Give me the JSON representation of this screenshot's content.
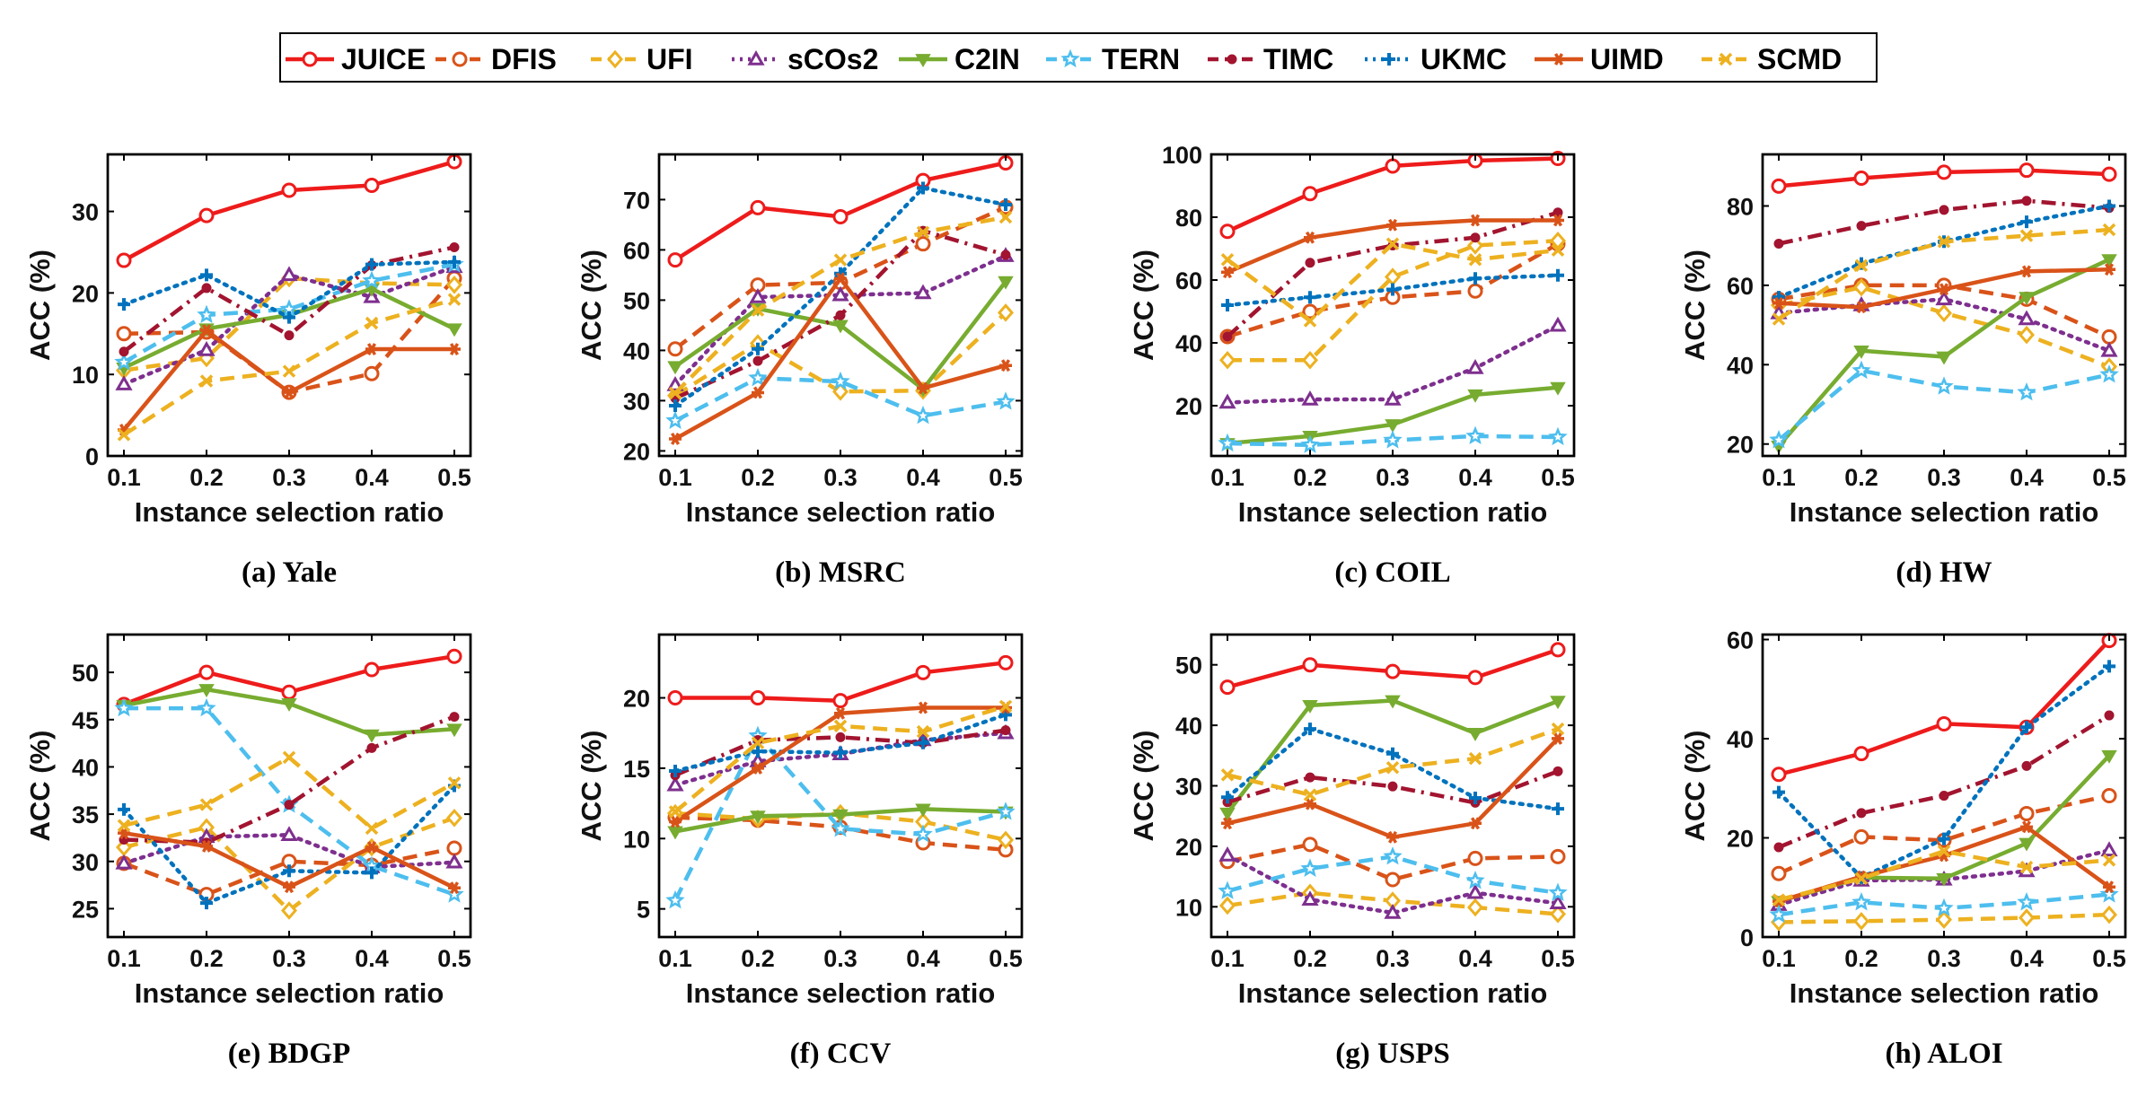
{
  "legend": [
    {
      "name": "JUICE",
      "color": "#EE1B1B",
      "dash": "solid",
      "marker": "circle-open"
    },
    {
      "name": "DFIS",
      "color": "#D95319",
      "dash": "dashed",
      "marker": "circle-open"
    },
    {
      "name": "UFI",
      "color": "#EDB120",
      "dash": "dashed",
      "marker": "diamond-open"
    },
    {
      "name": "sCOs2",
      "color": "#7E2F8E",
      "dash": "dotted",
      "marker": "triangle-open"
    },
    {
      "name": "C2IN",
      "color": "#77AC30",
      "dash": "solid",
      "marker": "triangle-down-filled"
    },
    {
      "name": "TERN",
      "color": "#4DBEEE",
      "dash": "dashed",
      "marker": "pentagram"
    },
    {
      "name": "TIMC",
      "color": "#A2142F",
      "dash": "dashdot",
      "marker": "dot"
    },
    {
      "name": "UKMC",
      "color": "#0072BD",
      "dash": "dotted",
      "marker": "plus"
    },
    {
      "name": "UIMD",
      "color": "#D95319",
      "dash": "solid",
      "marker": "star"
    },
    {
      "name": "SCMD",
      "color": "#EDB120",
      "dash": "dashed",
      "marker": "x"
    }
  ],
  "chart_data": [
    {
      "type": "line",
      "caption": "(a) Yale",
      "xlabel": "Instance selection ratio",
      "ylabel": "ACC (%)",
      "x": [
        0.1,
        0.2,
        0.3,
        0.4,
        0.5
      ],
      "xticks": [
        "0.1",
        "0.2",
        "0.3",
        "0.4",
        "0.5"
      ],
      "ylim": [
        0,
        37
      ],
      "yticks": [
        0,
        10,
        20,
        30
      ],
      "series": [
        {
          "name": "JUICE",
          "values": [
            24.0,
            29.5,
            32.6,
            33.2,
            36.1
          ]
        },
        {
          "name": "DFIS",
          "values": [
            15.0,
            15.2,
            7.8,
            10.1,
            21.8
          ]
        },
        {
          "name": "UFI",
          "values": [
            10.5,
            12.0,
            21.8,
            21.2,
            21.0
          ]
        },
        {
          "name": "sCOs2",
          "values": [
            8.8,
            13.0,
            22.2,
            19.5,
            23.2
          ]
        },
        {
          "name": "C2IN",
          "values": [
            10.8,
            15.6,
            17.3,
            20.5,
            15.6
          ]
        },
        {
          "name": "TERN",
          "values": [
            11.5,
            17.3,
            18.0,
            21.5,
            23.5
          ]
        },
        {
          "name": "TIMC",
          "values": [
            12.8,
            20.6,
            14.8,
            23.4,
            25.6
          ]
        },
        {
          "name": "UKMC",
          "values": [
            18.6,
            22.2,
            17.0,
            23.5,
            23.8
          ]
        },
        {
          "name": "UIMD",
          "values": [
            3.2,
            15.4,
            7.8,
            13.1,
            13.1
          ]
        },
        {
          "name": "SCMD",
          "values": [
            2.6,
            9.2,
            10.4,
            16.3,
            19.2
          ]
        }
      ]
    },
    {
      "type": "line",
      "caption": "(b) MSRC",
      "xlabel": "Instance selection ratio",
      "ylabel": "ACC (%)",
      "x": [
        0.1,
        0.2,
        0.3,
        0.4,
        0.5
      ],
      "xticks": [
        "0.1",
        "0.2",
        "0.3",
        "0.4",
        "0.5"
      ],
      "ylim": [
        19,
        79
      ],
      "yticks": [
        20,
        30,
        40,
        50,
        60,
        70
      ],
      "series": [
        {
          "name": "JUICE",
          "values": [
            58.0,
            68.4,
            66.6,
            73.8,
            77.3
          ]
        },
        {
          "name": "DFIS",
          "values": [
            40.3,
            53.0,
            53.5,
            61.2,
            68.5
          ]
        },
        {
          "name": "UFI",
          "values": [
            31.0,
            41.4,
            31.8,
            32.0,
            47.5
          ]
        },
        {
          "name": "sCOs2",
          "values": [
            33.1,
            50.6,
            51.0,
            51.4,
            58.8
          ]
        },
        {
          "name": "C2IN",
          "values": [
            36.8,
            48.3,
            45.0,
            32.3,
            53.7
          ]
        },
        {
          "name": "TERN",
          "values": [
            26.0,
            34.5,
            33.8,
            27.0,
            29.8
          ]
        },
        {
          "name": "TIMC",
          "values": [
            30.5,
            37.9,
            47.0,
            63.8,
            59.0
          ]
        },
        {
          "name": "UKMC",
          "values": [
            29.0,
            40.3,
            55.3,
            72.3,
            69.0
          ]
        },
        {
          "name": "UIMD",
          "values": [
            22.4,
            31.6,
            54.3,
            32.5,
            37.0
          ]
        },
        {
          "name": "SCMD",
          "values": [
            31.5,
            48.0,
            58.0,
            63.5,
            66.5
          ]
        }
      ]
    },
    {
      "type": "line",
      "caption": "(c) COIL",
      "xlabel": "Instance selection ratio",
      "ylabel": "ACC (%)",
      "x": [
        0.1,
        0.2,
        0.3,
        0.4,
        0.5
      ],
      "xticks": [
        "0.1",
        "0.2",
        "0.3",
        "0.4",
        "0.5"
      ],
      "ylim": [
        4,
        100
      ],
      "yticks": [
        20,
        40,
        60,
        80,
        100
      ],
      "series": [
        {
          "name": "JUICE",
          "values": [
            75.5,
            87.5,
            96.3,
            98.0,
            98.7
          ]
        },
        {
          "name": "DFIS",
          "values": [
            42.0,
            50.0,
            54.5,
            56.5,
            71.5
          ]
        },
        {
          "name": "UFI",
          "values": [
            34.5,
            34.5,
            61.0,
            71.0,
            72.5
          ]
        },
        {
          "name": "sCOs2",
          "values": [
            21.0,
            22.0,
            22.0,
            32.0,
            45.5
          ]
        },
        {
          "name": "C2IN",
          "values": [
            8.0,
            10.3,
            14.0,
            23.5,
            25.8
          ]
        },
        {
          "name": "TERN",
          "values": [
            8.0,
            7.5,
            9.0,
            10.3,
            10.0
          ]
        },
        {
          "name": "TIMC",
          "values": [
            42.0,
            65.5,
            71.0,
            73.5,
            81.5
          ]
        },
        {
          "name": "UKMC",
          "values": [
            52.0,
            54.5,
            57.0,
            60.5,
            61.5
          ]
        },
        {
          "name": "UIMD",
          "values": [
            62.5,
            73.5,
            77.5,
            79.0,
            79.0
          ]
        },
        {
          "name": "SCMD",
          "values": [
            66.5,
            47.0,
            71.5,
            66.5,
            69.5
          ]
        }
      ]
    },
    {
      "type": "line",
      "caption": "(d) HW",
      "xlabel": "Instance selection ratio",
      "ylabel": "ACC (%)",
      "x": [
        0.1,
        0.2,
        0.3,
        0.4,
        0.5
      ],
      "xticks": [
        "0.1",
        "0.2",
        "0.3",
        "0.4",
        "0.5"
      ],
      "ylim": [
        17,
        93
      ],
      "yticks": [
        20,
        40,
        60,
        80
      ],
      "series": [
        {
          "name": "JUICE",
          "values": [
            85.0,
            87.0,
            88.5,
            89.0,
            88.0
          ]
        },
        {
          "name": "DFIS",
          "values": [
            56.5,
            60.0,
            60.0,
            56.5,
            47.0
          ]
        },
        {
          "name": "UFI",
          "values": [
            55.0,
            59.5,
            53.0,
            47.5,
            39.5
          ]
        },
        {
          "name": "sCOs2",
          "values": [
            53.0,
            55.0,
            56.5,
            51.5,
            43.5
          ]
        },
        {
          "name": "C2IN",
          "values": [
            19.5,
            43.5,
            42.0,
            57.0,
            66.5
          ]
        },
        {
          "name": "TERN",
          "values": [
            21.0,
            38.5,
            34.5,
            33.0,
            37.5
          ]
        },
        {
          "name": "TIMC",
          "values": [
            70.5,
            75.0,
            79.0,
            81.3,
            79.5
          ]
        },
        {
          "name": "UKMC",
          "values": [
            57.0,
            65.5,
            71.0,
            76.0,
            80.0
          ]
        },
        {
          "name": "UIMD",
          "values": [
            55.5,
            54.5,
            59.0,
            63.5,
            64.0
          ]
        },
        {
          "name": "SCMD",
          "values": [
            51.5,
            65.0,
            71.0,
            72.5,
            74.0
          ]
        }
      ]
    },
    {
      "type": "line",
      "caption": "(e) BDGP",
      "xlabel": "Instance selection ratio",
      "ylabel": "ACC (%)",
      "x": [
        0.1,
        0.2,
        0.3,
        0.4,
        0.5
      ],
      "xticks": [
        "0.1",
        "0.2",
        "0.3",
        "0.4",
        "0.5"
      ],
      "ylim": [
        22,
        54
      ],
      "yticks": [
        25,
        30,
        35,
        40,
        45,
        50
      ],
      "series": [
        {
          "name": "JUICE",
          "values": [
            46.6,
            50.0,
            47.9,
            50.3,
            51.7
          ]
        },
        {
          "name": "DFIS",
          "values": [
            29.8,
            26.5,
            30.0,
            29.6,
            31.4
          ]
        },
        {
          "name": "UFI",
          "values": [
            31.5,
            33.6,
            24.8,
            31.5,
            34.6
          ]
        },
        {
          "name": "sCOs2",
          "values": [
            29.8,
            32.6,
            32.8,
            29.4,
            29.9
          ]
        },
        {
          "name": "C2IN",
          "values": [
            46.5,
            48.2,
            46.7,
            43.4,
            44.0
          ]
        },
        {
          "name": "TERN",
          "values": [
            46.2,
            46.2,
            36.0,
            29.5,
            26.5
          ]
        },
        {
          "name": "TIMC",
          "values": [
            32.3,
            32.0,
            36.0,
            42.0,
            45.3
          ]
        },
        {
          "name": "UKMC",
          "values": [
            35.5,
            25.6,
            29.0,
            28.8,
            38.0
          ]
        },
        {
          "name": "UIMD",
          "values": [
            33.0,
            31.6,
            27.3,
            31.5,
            27.2
          ]
        },
        {
          "name": "SCMD",
          "values": [
            33.8,
            36.0,
            41.0,
            33.5,
            38.3
          ]
        }
      ]
    },
    {
      "type": "line",
      "caption": "(f) CCV",
      "xlabel": "Instance selection ratio",
      "ylabel": "ACC (%)",
      "x": [
        0.1,
        0.2,
        0.3,
        0.4,
        0.5
      ],
      "xticks": [
        "0.1",
        "0.2",
        "0.3",
        "0.4",
        "0.5"
      ],
      "ylim": [
        3,
        24.5
      ],
      "yticks": [
        5,
        10,
        15,
        20
      ],
      "series": [
        {
          "name": "JUICE",
          "values": [
            20.0,
            20.0,
            19.8,
            21.8,
            22.5
          ]
        },
        {
          "name": "DFIS",
          "values": [
            11.5,
            11.3,
            10.8,
            9.7,
            9.2
          ]
        },
        {
          "name": "UFI",
          "values": [
            11.8,
            11.4,
            11.8,
            11.2,
            9.9
          ]
        },
        {
          "name": "sCOs2",
          "values": [
            13.8,
            15.5,
            16.0,
            17.0,
            17.5
          ]
        },
        {
          "name": "C2IN",
          "values": [
            10.5,
            11.6,
            11.7,
            12.1,
            11.9
          ]
        },
        {
          "name": "TERN",
          "values": [
            5.6,
            17.3,
            10.7,
            10.3,
            11.9
          ]
        },
        {
          "name": "TIMC",
          "values": [
            14.5,
            17.0,
            17.2,
            16.8,
            17.7
          ]
        },
        {
          "name": "UKMC",
          "values": [
            14.8,
            16.2,
            16.1,
            16.8,
            18.8
          ]
        },
        {
          "name": "UIMD",
          "values": [
            11.2,
            15.0,
            18.9,
            19.3,
            19.3
          ]
        },
        {
          "name": "SCMD",
          "values": [
            11.9,
            16.8,
            18.0,
            17.6,
            19.4
          ]
        }
      ]
    },
    {
      "type": "line",
      "caption": "(g) USPS",
      "xlabel": "Instance selection ratio",
      "ylabel": "ACC (%)",
      "x": [
        0.1,
        0.2,
        0.3,
        0.4,
        0.5
      ],
      "xticks": [
        "0.1",
        "0.2",
        "0.3",
        "0.4",
        "0.5"
      ],
      "ylim": [
        5,
        55
      ],
      "yticks": [
        10,
        20,
        30,
        40,
        50
      ],
      "series": [
        {
          "name": "JUICE",
          "values": [
            46.3,
            50.0,
            48.9,
            47.9,
            52.5
          ]
        },
        {
          "name": "DFIS",
          "values": [
            17.5,
            20.3,
            14.5,
            18.0,
            18.3
          ]
        },
        {
          "name": "UFI",
          "values": [
            10.2,
            12.3,
            11.0,
            9.9,
            8.8
          ]
        },
        {
          "name": "sCOs2",
          "values": [
            18.5,
            11.2,
            9.0,
            12.3,
            10.6
          ]
        },
        {
          "name": "C2IN",
          "values": [
            25.5,
            43.3,
            44.1,
            38.7,
            44.0
          ]
        },
        {
          "name": "TERN",
          "values": [
            12.6,
            16.3,
            18.3,
            14.3,
            12.3
          ]
        },
        {
          "name": "TIMC",
          "values": [
            27.3,
            31.4,
            29.9,
            27.2,
            32.4
          ]
        },
        {
          "name": "UKMC",
          "values": [
            28.1,
            39.4,
            35.3,
            28.0,
            26.2
          ]
        },
        {
          "name": "UIMD",
          "values": [
            23.8,
            27.0,
            21.5,
            23.8,
            37.8
          ]
        },
        {
          "name": "SCMD",
          "values": [
            31.8,
            28.5,
            33.0,
            34.5,
            39.4
          ]
        }
      ]
    },
    {
      "type": "line",
      "caption": "(h) ALOI",
      "xlabel": "Instance selection ratio",
      "ylabel": "ACC (%)",
      "x": [
        0.1,
        0.2,
        0.3,
        0.4,
        0.5
      ],
      "xticks": [
        "0.1",
        "0.2",
        "0.3",
        "0.4",
        "0.5"
      ],
      "ylim": [
        0,
        61
      ],
      "yticks": [
        0,
        20,
        40,
        60
      ],
      "series": [
        {
          "name": "JUICE",
          "values": [
            32.8,
            37.0,
            43.0,
            42.3,
            59.8
          ]
        },
        {
          "name": "DFIS",
          "values": [
            12.8,
            20.2,
            19.5,
            24.9,
            28.5
          ]
        },
        {
          "name": "UFI",
          "values": [
            3.0,
            3.2,
            3.5,
            3.9,
            4.5
          ]
        },
        {
          "name": "sCOs2",
          "values": [
            6.5,
            11.4,
            11.6,
            13.3,
            17.5
          ]
        },
        {
          "name": "C2IN",
          "values": [
            7.2,
            12.0,
            11.8,
            18.9,
            36.6
          ]
        },
        {
          "name": "TERN",
          "values": [
            4.5,
            7.0,
            5.8,
            7.0,
            8.6
          ]
        },
        {
          "name": "TIMC",
          "values": [
            18.1,
            25.0,
            28.5,
            34.5,
            44.7
          ]
        },
        {
          "name": "UKMC",
          "values": [
            29.2,
            12.0,
            19.8,
            42.3,
            54.6
          ]
        },
        {
          "name": "UIMD",
          "values": [
            7.2,
            12.2,
            16.4,
            22.2,
            10.1
          ]
        },
        {
          "name": "SCMD",
          "values": [
            7.5,
            11.8,
            17.3,
            14.1,
            15.5
          ]
        }
      ]
    }
  ]
}
